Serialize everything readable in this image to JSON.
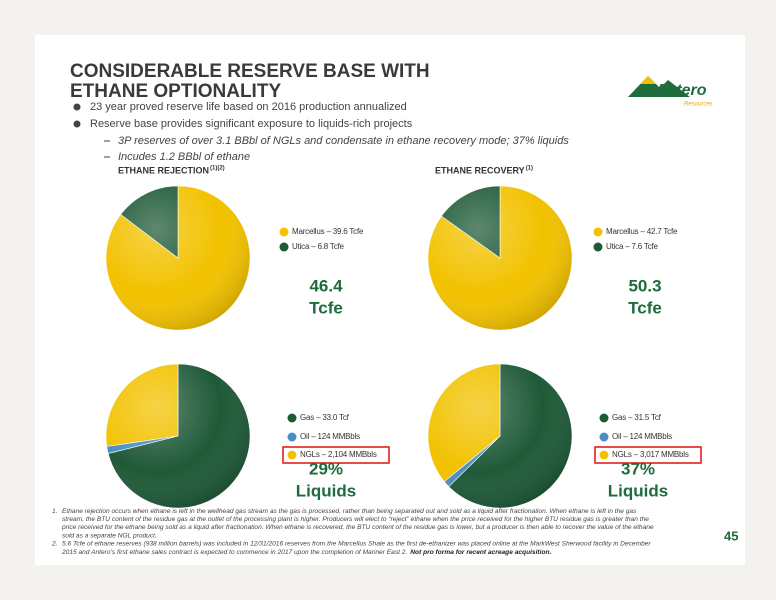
{
  "header": {
    "title_lines": [
      "CONSIDERABLE RESERVE BASE WITH",
      "ETHANE OPTIONALITY"
    ],
    "logo": "Antero",
    "logo_sub": "Resources"
  },
  "bullets": [
    "23 year proved reserve life based on 2016 production annualized",
    "Reserve base provides significant exposure to liquids-rich projects"
  ],
  "sub_bullets": [
    "3P reserves of over 3.1 BBbl of NGLs and condensate in ethane recovery mode; 37% liquids",
    "Incudes 1.2 BBbl of ethane"
  ],
  "chart_data": [
    {
      "type": "pie",
      "title": "ETHANE REJECTION",
      "title_sup": "(1)(2)",
      "categories": [
        "Marcellus – 39.6 Tcfe",
        "Utica – 6.8 Tcfe"
      ],
      "values": [
        39.6,
        6.8
      ],
      "colors": [
        "#f2c200",
        "#1f5a38"
      ],
      "annotation": [
        "46.4",
        "Tcfe"
      ]
    },
    {
      "type": "pie",
      "title": "ETHANE RECOVERY",
      "title_sup": "(1)",
      "categories": [
        "Marcellus – 42.7 Tcfe",
        "Utica – 7.6 Tcfe"
      ],
      "values": [
        42.7,
        7.6
      ],
      "colors": [
        "#f2c200",
        "#1f5a38"
      ],
      "annotation": [
        "50.3",
        "Tcfe"
      ]
    },
    {
      "type": "pie",
      "categories": [
        "Gas – 33.0 Tcf",
        "Oil – 124 MMBbls",
        "NGLs – 2,104 MMBbls"
      ],
      "values": [
        71.1,
        1.6,
        27.3
      ],
      "colors": [
        "#1f5a38",
        "#4a8fc4",
        "#f2c200"
      ],
      "annotation": [
        "29%",
        "Liquids"
      ],
      "highlight": 2
    },
    {
      "type": "pie",
      "categories": [
        "Gas – 31.5 Tcf",
        "Oil – 124 MMBbls",
        "NGLs – 3,017 MMBbls"
      ],
      "values": [
        62.6,
        1.5,
        35.9
      ],
      "colors": [
        "#1f5a38",
        "#4a8fc4",
        "#f2c200"
      ],
      "annotation": [
        "37%",
        "Liquids"
      ],
      "highlight": 2
    }
  ],
  "footnotes": [
    {
      "number": "1.",
      "lines": [
        "Ethane rejection occurs when ethane is left in the wellhead gas stream as the gas is processed, rather than being separated out and sold as a liquid after fractionation. When ethane is left in the gas",
        "stream, the BTU content of the residue gas at the outlet of the processing plant is higher. Producers will elect to “reject” ethane when the price received for the higher BTU residue gas is greater than the",
        "price received for the ethane being sold as a liquid after fractionation. When ethane is recovered, the BTU content of the residue gas is lower, but a producer is then able to recover the value of the ethane",
        "sold as a separate NGL product."
      ]
    },
    {
      "number": "2.",
      "lines": [
        "5.6 Tcfe of ethane reserves (938 million barrels) was included in 12/31/2016 reserves  from the Marcellus Shale as the first de-ethanizer was placed online at the MarkWest Sherwood facility in December",
        "2015 and Antero’s first ethane sales contract is expected to commence in 2017 upon the completion of Mariner East 2."
      ],
      "bold": "Not pro forma for recent acreage acquisition."
    }
  ],
  "page_number": "45"
}
